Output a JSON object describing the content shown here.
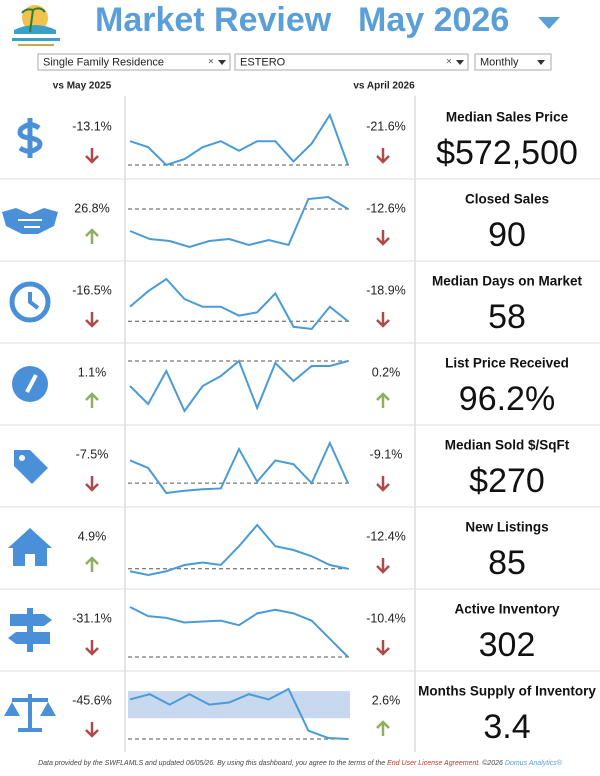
{
  "header": {
    "title": "Market Review",
    "period": "May 2026"
  },
  "filters": [
    "Single Family Residence",
    "ESTERO",
    "Monthly"
  ],
  "columns": {
    "year_compare": "vs May 2025",
    "month_compare": "vs April 2026"
  },
  "metrics": [
    {
      "label": "Median Sales Price",
      "value": "$572,500",
      "vs_year": "-13.1%",
      "vs_year_dir": "down",
      "vs_month": "-21.6%",
      "vs_month_dir": "down",
      "trend": [
        40,
        35,
        20,
        25,
        35,
        40,
        32,
        40,
        40,
        23,
        38,
        62,
        20
      ]
    },
    {
      "label": "Closed Sales",
      "value": "90",
      "vs_year": "26.8%",
      "vs_year_dir": "up",
      "vs_month": "-12.6%",
      "vs_month_dir": "down",
      "trend": [
        25,
        17,
        15,
        9,
        15,
        17,
        11,
        16,
        11,
        57,
        59,
        47
      ]
    },
    {
      "label": "Median Days on Market",
      "value": "58",
      "vs_year": "-16.5%",
      "vs_year_dir": "down",
      "vs_month": "-18.9%",
      "vs_month_dir": "down",
      "trend": [
        48,
        62,
        73,
        55,
        48,
        48,
        40,
        43,
        60,
        30,
        28,
        48,
        35
      ]
    },
    {
      "label": "List Price Received",
      "value": "96.2%",
      "vs_year": "1.1%",
      "vs_year_dir": "up",
      "vs_month": "0.2%",
      "vs_month_dir": "up",
      "trend": [
        35,
        17,
        50,
        10,
        35,
        45,
        60,
        13,
        58,
        40,
        55,
        55,
        60
      ]
    },
    {
      "label": "Median Sold $/SqFt",
      "value": "$270",
      "vs_year": "-7.5%",
      "vs_year_dir": "down",
      "vs_month": "-9.1%",
      "vs_month_dir": "down",
      "trend": [
        52,
        42,
        9,
        12,
        14,
        15,
        67,
        24,
        52,
        47,
        22,
        75,
        22
      ]
    },
    {
      "label": "New Listings",
      "value": "85",
      "vs_year": "4.9%",
      "vs_year_dir": "up",
      "vs_month": "-12.4%",
      "vs_month_dir": "down",
      "trend": [
        20,
        17,
        20,
        25,
        27,
        25,
        40,
        57,
        40,
        37,
        32,
        25,
        22
      ]
    },
    {
      "label": "Active Inventory",
      "value": "302",
      "vs_year": "-31.1%",
      "vs_year_dir": "down",
      "vs_month": "-10.4%",
      "vs_month_dir": "down",
      "trend": [
        78,
        68,
        66,
        61,
        62,
        63,
        58,
        71,
        75,
        71,
        63,
        43,
        23
      ]
    },
    {
      "label": "Months Supply of Inventory",
      "value": "3.4",
      "vs_year": "-45.6%",
      "vs_year_dir": "down",
      "vs_month": "2.6%",
      "vs_month_dir": "up",
      "trend": [
        60,
        65,
        55,
        65,
        55,
        57,
        65,
        60,
        70,
        30,
        23,
        22
      ],
      "band": [
        42,
        68
      ]
    }
  ],
  "footer": {
    "text": "Data provided by the SWFLAMLS and updated 06/05/26.  By using this dashboard, you agree to the terms of the",
    "link": "End User License Agreement.",
    "copyright": "©2026",
    "brand": "Domus Analytics®"
  }
}
